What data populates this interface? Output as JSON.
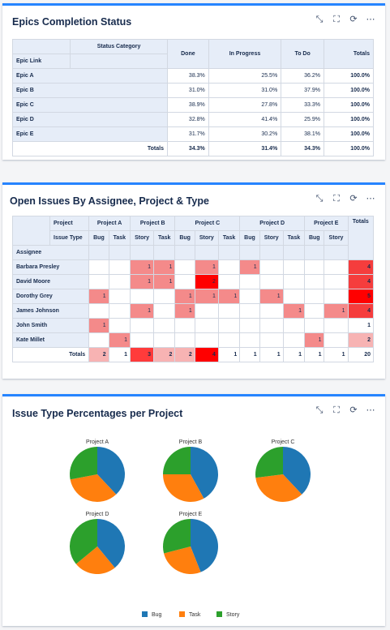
{
  "panel1": {
    "title": "Epics Completion Status",
    "headers": {
      "status_category": "Status Category",
      "epic_link": "Epic Link",
      "done": "Done",
      "in_progress": "In Progress",
      "to_do": "To Do",
      "totals": "Totals"
    },
    "rows": [
      {
        "label": "Epic A",
        "done": "38.3%",
        "in_progress": "25.5%",
        "to_do": "36.2%",
        "totals": "100.0%"
      },
      {
        "label": "Epic B",
        "done": "31.0%",
        "in_progress": "31.0%",
        "to_do": "37.9%",
        "totals": "100.0%"
      },
      {
        "label": "Epic C",
        "done": "38.9%",
        "in_progress": "27.8%",
        "to_do": "33.3%",
        "totals": "100.0%"
      },
      {
        "label": "Epic D",
        "done": "32.8%",
        "in_progress": "41.4%",
        "to_do": "25.9%",
        "totals": "100.0%"
      },
      {
        "label": "Epic E",
        "done": "31.7%",
        "in_progress": "30.2%",
        "to_do": "38.1%",
        "totals": "100.0%"
      }
    ],
    "totals_row": {
      "label": "Totals",
      "done": "34.3%",
      "in_progress": "31.4%",
      "to_do": "34.3%",
      "totals": "100.0%"
    }
  },
  "panel2": {
    "title": "Open Issues By Assignee, Project & Type",
    "header_project": "Project",
    "header_issue_type": "Issue Type",
    "header_assignee": "Assignee",
    "header_totals": "Totals",
    "projects": [
      {
        "name": "Project A",
        "types": [
          "Bug",
          "Task"
        ]
      },
      {
        "name": "Project B",
        "types": [
          "Story",
          "Task"
        ]
      },
      {
        "name": "Project C",
        "types": [
          "Bug",
          "Story",
          "Task"
        ]
      },
      {
        "name": "Project D",
        "types": [
          "Bug",
          "Story",
          "Task"
        ]
      },
      {
        "name": "Project E",
        "types": [
          "Bug",
          "Story"
        ]
      }
    ],
    "rows": [
      {
        "assignee": "Barbara Presley",
        "cells": [
          "",
          "",
          "1",
          "1",
          "",
          "1",
          "",
          "1",
          "",
          "",
          "",
          ""
        ],
        "total": "4"
      },
      {
        "assignee": "David Moore",
        "cells": [
          "",
          "",
          "1",
          "1",
          "",
          "2",
          "",
          "",
          "",
          "",
          "",
          ""
        ],
        "total": "4"
      },
      {
        "assignee": "Dorothy Grey",
        "cells": [
          "1",
          "",
          "",
          "",
          "1",
          "1",
          "1",
          "",
          "1",
          "",
          "",
          ""
        ],
        "total": "5"
      },
      {
        "assignee": "James Johnson",
        "cells": [
          "",
          "",
          "1",
          "",
          "1",
          "",
          "",
          "",
          "",
          "1",
          "",
          "1"
        ],
        "total": "4"
      },
      {
        "assignee": "John Smith",
        "cells": [
          "1",
          "",
          "",
          "",
          "",
          "",
          "",
          "",
          "",
          "",
          "",
          ""
        ],
        "total": "1"
      },
      {
        "assignee": "Kate Millet",
        "cells": [
          "",
          "1",
          "",
          "",
          "",
          "",
          "",
          "",
          "",
          "",
          "1",
          ""
        ],
        "total": "2"
      }
    ],
    "totals_row": {
      "label": "Totals",
      "cells": [
        "2",
        "1",
        "3",
        "2",
        "2",
        "4",
        "1",
        "1",
        "1",
        "1",
        "1",
        "1"
      ],
      "total": "20"
    }
  },
  "panel3": {
    "title": "Issue Type Percentages per Project",
    "legend": [
      {
        "name": "Bug",
        "color": "#1f77b4"
      },
      {
        "name": "Task",
        "color": "#ff7f0e"
      },
      {
        "name": "Story",
        "color": "#2ca02c"
      }
    ]
  },
  "chart_data": {
    "type": "pie",
    "series_names": [
      "Bug",
      "Task",
      "Story"
    ],
    "colors": [
      "#1f77b4",
      "#ff7f0e",
      "#2ca02c"
    ],
    "pies": [
      {
        "title": "Project A",
        "values": [
          38,
          34,
          28
        ]
      },
      {
        "title": "Project B",
        "values": [
          42,
          33,
          25
        ]
      },
      {
        "title": "Project C",
        "values": [
          38,
          35,
          27
        ]
      },
      {
        "title": "Project D",
        "values": [
          39,
          25,
          36
        ]
      },
      {
        "title": "Project E",
        "values": [
          44,
          27,
          29
        ]
      }
    ],
    "legend_position": "bottom"
  }
}
